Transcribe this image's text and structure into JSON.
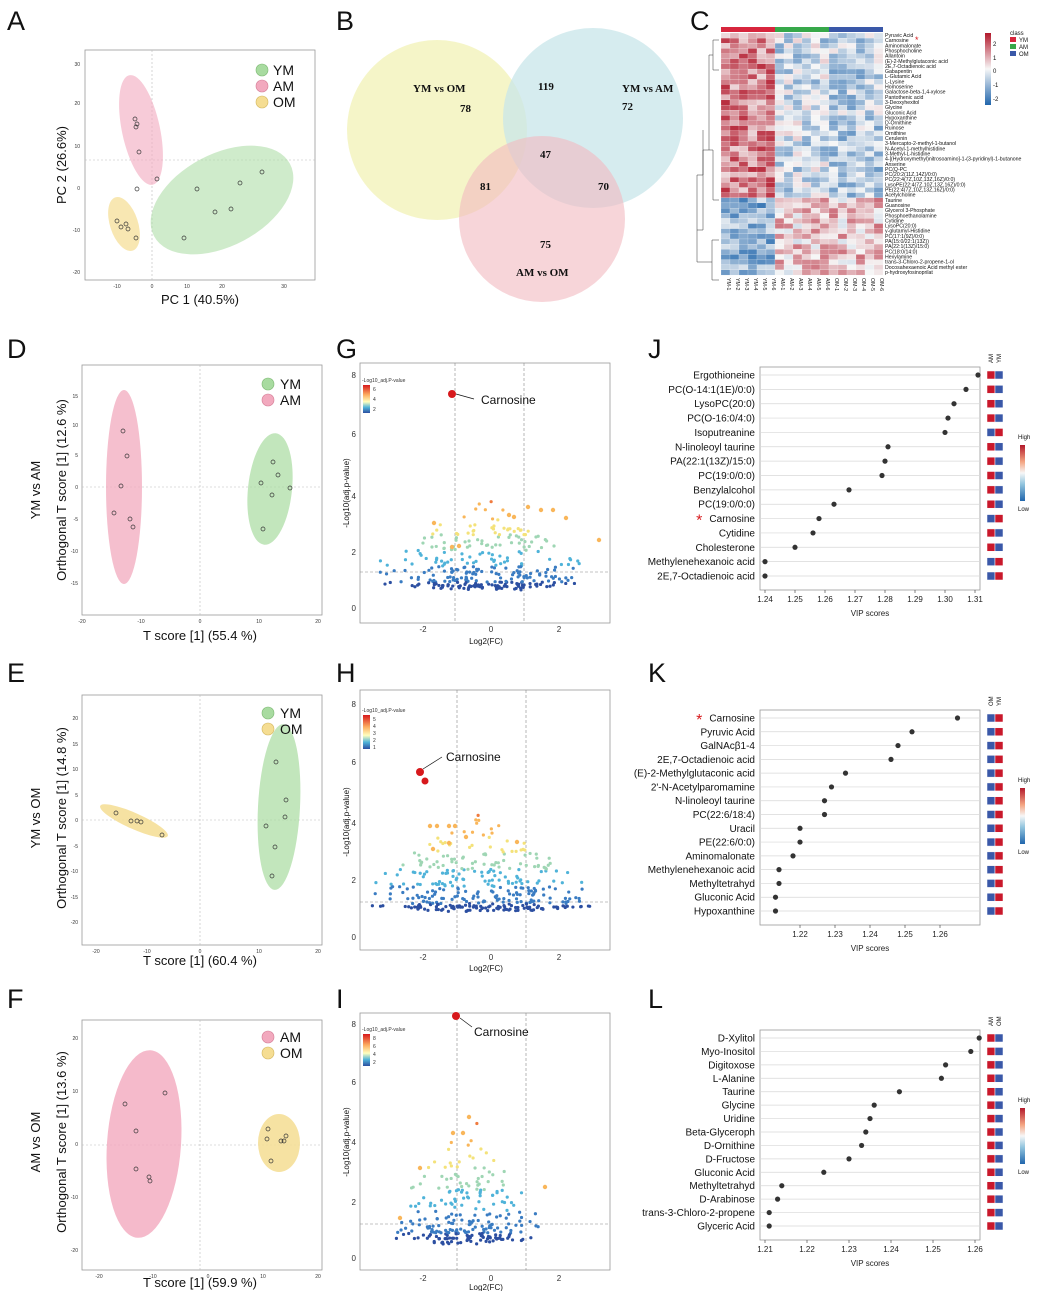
{
  "colors": {
    "YM": "#a8dba0",
    "AM": "#f2a9be",
    "OM": "#f5dd92"
  },
  "panels": {
    "A": "A",
    "B": "B",
    "C": "C",
    "D": "D",
    "E": "E",
    "F": "F",
    "G": "G",
    "H": "H",
    "I": "I",
    "J": "J",
    "K": "K",
    "L": "L"
  },
  "pca": {
    "xlabel": "PC 1 (40.5%)",
    "ylabel": "PC 2 (26.6%)",
    "legend": [
      "YM",
      "AM",
      "OM"
    ],
    "xticks": [
      "-10",
      "0",
      "10",
      "20",
      "30"
    ],
    "yticks": [
      "30",
      "20",
      "10",
      "0",
      "-10",
      "-20"
    ]
  },
  "opls": [
    {
      "id": "D",
      "row_label": "YM vs AM",
      "xlabel": "T score [1] (55.4 %)",
      "ylabel": "Orthogonal T score [1] (12.6 %)",
      "legend": [
        "YM",
        "AM"
      ],
      "xticks": [
        "-20",
        "-10",
        "0",
        "10",
        "20"
      ],
      "yticks": [
        "15",
        "10",
        "5",
        "0",
        "-5",
        "-10",
        "-15"
      ]
    },
    {
      "id": "E",
      "row_label": "YM vs OM",
      "xlabel": "T score [1] (60.4 %)",
      "ylabel": "Orthogonal T score [1] (14.8 %)",
      "legend": [
        "YM",
        "OM"
      ],
      "xticks": [
        "-20",
        "-10",
        "0",
        "10",
        "20"
      ],
      "yticks": [
        "20",
        "15",
        "10",
        "5",
        "0",
        "-5",
        "-10",
        "-15",
        "-20"
      ]
    },
    {
      "id": "F",
      "row_label": "AM vs OM",
      "xlabel": "T score [1] (59.9 %)",
      "ylabel": "Orthogonal T score [1] (13.6 %)",
      "legend": [
        "AM",
        "OM"
      ],
      "xticks": [
        "-20",
        "-10",
        "0",
        "10",
        "20"
      ],
      "yticks": [
        "20",
        "10",
        "0",
        "-10",
        "-20"
      ]
    }
  ],
  "venn": {
    "sets": [
      "YM vs OM",
      "YM vs AM",
      "AM vs OM"
    ],
    "counts": {
      "only_ym_om": "78",
      "only_ym_am": "72",
      "only_am_om": "75",
      "ym_om_and_ym_am": "119",
      "ym_om_and_am_om": "81",
      "ym_am_and_am_om": "70",
      "all": "47"
    }
  },
  "heatmap": {
    "legend_title": "class",
    "legend_items": [
      "YM",
      "AM",
      "OM"
    ],
    "scale_ticks": [
      "2",
      "1",
      "0",
      "-1",
      "-2"
    ],
    "rows": [
      "Pyruvic Acid",
      "Carnosine",
      "Aminomalonate",
      "Phosphocholine",
      "Allantoin",
      "(E)-2-Methylglutaconic acid",
      "2E,7-Octadienoic acid",
      "Gabapentin",
      "L-Glutamic Acid",
      "L-Lysine",
      "Homoserine",
      "Galactose-beta-1,4-xylose",
      "Pantothenic acid",
      "3-Deoxyhexitol",
      "Glycine",
      "Gluconic Acid",
      "Hypoxanthine",
      "D-Ornithine",
      "Ruinose",
      "Ornithine",
      "Cerulenin",
      "3-Mercapto-2-methyl-1-butanol",
      "N-Acetyl-1-methylhistidine",
      "3-Methyl-L-histidine",
      "4-[(Hydroxymethyl)nitrosoamino]-1-(3-pyridinyl)-1-butanone",
      "Anserine",
      "PC(Q-PC",
      "PC(20:2(11Z,14Z)/0:0)",
      "PC(22:4(7Z,10Z,13Z,16Z)/0:0)",
      "LysoPE(22:4(7Z,10Z,13Z,16Z)/0:0)",
      "PE(22:4(7Z,10Z,13Z,16Z)/0:0)",
      "Acetylcholine",
      "Taurine",
      "Guanosine",
      "Glycerol 3-Phosphate",
      "Phosphoethanolamine",
      "Cytidine",
      "LysoPC(20:0)",
      "y-glutamyl-Histidine",
      "PC(17:1(9Z)/0:0)",
      "PA(15:0/22:1(13Z))",
      "PA(22:1(13Z)/15:0)",
      "PC(18:0/14:0)",
      "Hexylamine",
      "trans-3-Chloro-2-propene-1-ol",
      "Docosahexaenoic Acid methyl ester",
      "p-hydroxyfosinoprilat"
    ],
    "cols": [
      "YM-1",
      "YM-2",
      "YM-3",
      "YM-4",
      "YM-5",
      "YM-6",
      "AM-1",
      "AM-2",
      "AM-3",
      "AM-4",
      "AM-5",
      "AM-6",
      "OM-1",
      "OM-2",
      "OM-3",
      "OM-4",
      "OM-5",
      "OM-6"
    ]
  },
  "volcano": [
    {
      "id": "G",
      "legend_title": "-Log10_adj.P-value",
      "scale": [
        "6",
        "4",
        "2"
      ],
      "xlabel": "Log2(FC)",
      "ylabel": "-Log10(adj.p-value)",
      "xticks": [
        "-2",
        "0",
        "2"
      ],
      "yticks": [
        "0",
        "2",
        "4",
        "6",
        "8"
      ],
      "annotation": "Carnosine"
    },
    {
      "id": "H",
      "legend_title": "-Log10_adj.P-value",
      "scale": [
        "5",
        "4",
        "3",
        "2",
        "1"
      ],
      "xlabel": "Log2(FC)",
      "ylabel": "-Log10(adj.p-value)",
      "xticks": [
        "-2",
        "0",
        "2"
      ],
      "yticks": [
        "0",
        "2",
        "4",
        "6",
        "8"
      ],
      "annotation": "Carnosine"
    },
    {
      "id": "I",
      "legend_title": "-Log10_adj.P-value",
      "scale": [
        "8",
        "6",
        "4",
        "2"
      ],
      "xlabel": "Log2(FC)",
      "ylabel": "-Log10(adj.p-value)",
      "xticks": [
        "-2",
        "0",
        "2"
      ],
      "yticks": [
        "0",
        "2",
        "4",
        "6",
        "8"
      ],
      "annotation": "Carnosine"
    }
  ],
  "chart_data": [
    {
      "panel": "J",
      "type": "scatter",
      "title": "VIP scores",
      "xlabel": "VIP scores",
      "xlim": [
        1.24,
        1.31
      ],
      "groups": [
        "AM",
        "YM"
      ],
      "scale_high": "High",
      "scale_low": "Low",
      "xticks": [
        "1.24",
        "1.25",
        "1.26",
        "1.27",
        "1.28",
        "1.29",
        "1.30",
        "1.31"
      ],
      "categories": [
        "Ergothioneine",
        "PC(O-14:1(1E)/0:0)",
        "LysoPC(20:0)",
        "PC(O-16:0/4:0)",
        "Isoputreanine",
        "N-linoleoyl taurine",
        "PA(22:1(13Z)/15:0)",
        "PC(19:0/0:0)",
        "Benzylalcohol",
        "PC(19:0/0:0)",
        "Carnosine",
        "Cytidine",
        "Cholesterone",
        "Methylenehexanoic acid",
        "2E,7-Octadienoic acid"
      ],
      "values": [
        1.311,
        1.307,
        1.303,
        1.301,
        1.3,
        1.281,
        1.28,
        1.279,
        1.268,
        1.263,
        1.258,
        1.256,
        1.25,
        1.24,
        1.24
      ],
      "highlight": "Carnosine",
      "tiles": [
        [
          1,
          0
        ],
        [
          1,
          0
        ],
        [
          1,
          0
        ],
        [
          1,
          0
        ],
        [
          0,
          1
        ],
        [
          1,
          0
        ],
        [
          1,
          0
        ],
        [
          1,
          0
        ],
        [
          1,
          0
        ],
        [
          1,
          0
        ],
        [
          0,
          1
        ],
        [
          1,
          0
        ],
        [
          1,
          0
        ],
        [
          0,
          1
        ],
        [
          0,
          1
        ]
      ]
    },
    {
      "panel": "K",
      "type": "scatter",
      "title": "VIP scores",
      "xlabel": "VIP scores",
      "xlim": [
        1.21,
        1.27
      ],
      "groups": [
        "OM",
        "YM"
      ],
      "scale_high": "High",
      "scale_low": "Low",
      "xticks": [
        "1.22",
        "1.23",
        "1.24",
        "1.25",
        "1.26"
      ],
      "categories": [
        "Carnosine",
        "Pyruvic Acid",
        "GalNAcβ1-4",
        "2E,7-Octadienoic acid",
        "(E)-2-Methylglutaconic acid",
        "2'-N-Acetylparomamine",
        "N-linoleoyl taurine",
        "PC(22:6/18:4)",
        "Uracil",
        "PE(22:6/0:0)",
        "Aminomalonate",
        "Methylenehexanoic acid",
        "Methyltetrahyd",
        "Gluconic Acid",
        "Hypoxanthine"
      ],
      "values": [
        1.265,
        1.252,
        1.248,
        1.246,
        1.233,
        1.229,
        1.227,
        1.227,
        1.22,
        1.22,
        1.218,
        1.214,
        1.214,
        1.213,
        1.213
      ],
      "highlight": "Carnosine",
      "tiles": [
        [
          0,
          1
        ],
        [
          0,
          1
        ],
        [
          0,
          1
        ],
        [
          0,
          1
        ],
        [
          0,
          1
        ],
        [
          0,
          1
        ],
        [
          0,
          1
        ],
        [
          0,
          1
        ],
        [
          0,
          1
        ],
        [
          0,
          1
        ],
        [
          0,
          1
        ],
        [
          0,
          1
        ],
        [
          0,
          1
        ],
        [
          0,
          1
        ],
        [
          0,
          1
        ]
      ]
    },
    {
      "panel": "L",
      "type": "scatter",
      "title": "VIP scores",
      "xlabel": "VIP scores",
      "xlim": [
        1.21,
        1.26
      ],
      "groups": [
        "AM",
        "OM"
      ],
      "scale_high": "High",
      "scale_low": "Low",
      "xticks": [
        "1.21",
        "1.22",
        "1.23",
        "1.24",
        "1.25",
        "1.26"
      ],
      "categories": [
        "D-Xylitol",
        "Myo-Inositol",
        "Digitoxose",
        "L-Alanine",
        "Taurine",
        "Glycine",
        "Uridine",
        "Beta-Glyceroph",
        "D-Ornithine",
        "D-Fructose",
        "Gluconic Acid",
        "Methyltetrahyd",
        "D-Arabinose",
        "trans-3-Chloro-2-propene",
        "Glyceric Acid"
      ],
      "values": [
        1.261,
        1.259,
        1.253,
        1.252,
        1.242,
        1.236,
        1.235,
        1.234,
        1.233,
        1.23,
        1.224,
        1.214,
        1.213,
        1.211,
        1.211
      ],
      "highlight": "",
      "tiles": [
        [
          1,
          0
        ],
        [
          1,
          0
        ],
        [
          1,
          0
        ],
        [
          1,
          0
        ],
        [
          1,
          0
        ],
        [
          1,
          0
        ],
        [
          1,
          0
        ],
        [
          1,
          0
        ],
        [
          1,
          0
        ],
        [
          1,
          0
        ],
        [
          1,
          0
        ],
        [
          1,
          0
        ],
        [
          1,
          0
        ],
        [
          1,
          0
        ],
        [
          1,
          0
        ]
      ]
    }
  ]
}
